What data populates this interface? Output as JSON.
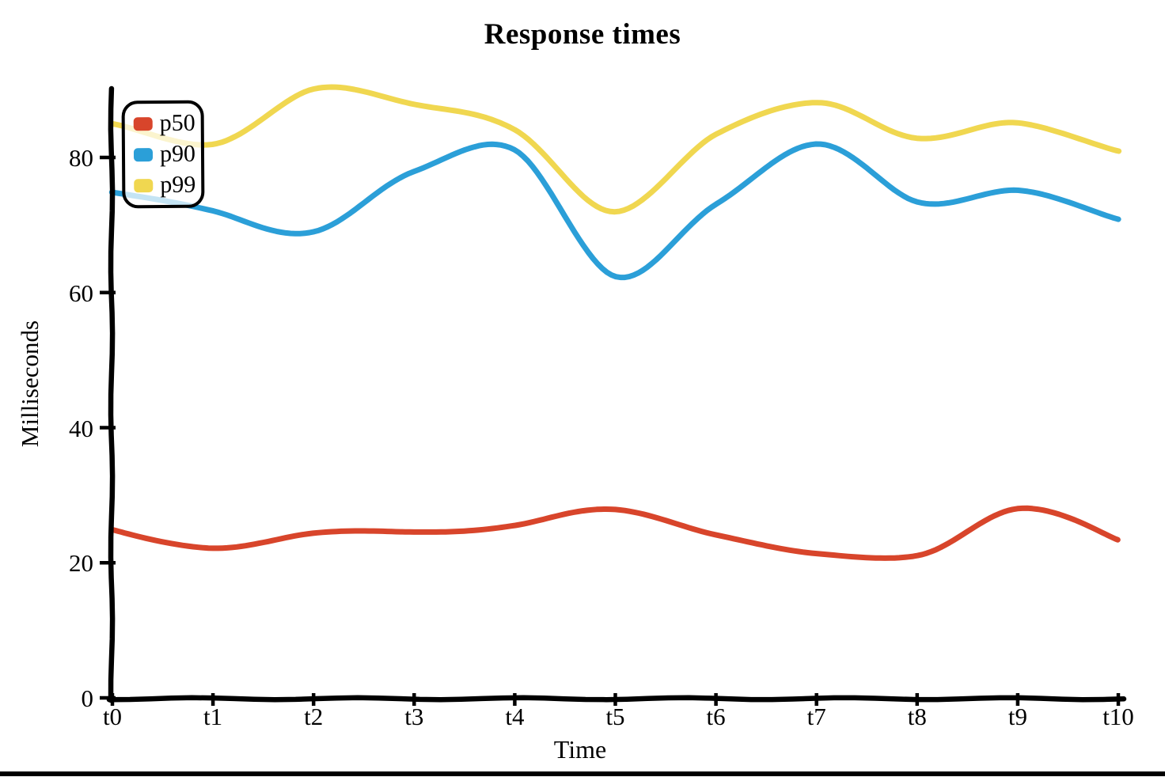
{
  "chart_data": {
    "type": "line",
    "title": "Response times",
    "xlabel": "Time",
    "ylabel": "Milliseconds",
    "categories": [
      "t0",
      "t1",
      "t2",
      "t3",
      "t4",
      "t5",
      "t6",
      "t7",
      "t8",
      "t9",
      "t10"
    ],
    "x": [
      0,
      1,
      2,
      3,
      4,
      5,
      6,
      7,
      8,
      9,
      10
    ],
    "yticks": [
      0,
      20,
      40,
      60,
      80
    ],
    "ylim": [
      0,
      90
    ],
    "grid": false,
    "legend_position": "upper-left",
    "style": "hand-drawn sketch lines, thick strokes, serif labels",
    "series": [
      {
        "name": "p50",
        "color": "#d8452b",
        "values": [
          25,
          22,
          24.5,
          24.5,
          25.5,
          28,
          24,
          21.5,
          21,
          28,
          23.5
        ]
      },
      {
        "name": "p90",
        "color": "#2b9fd8",
        "values": [
          75,
          72,
          69,
          78,
          81,
          62.5,
          73,
          82,
          73.5,
          75,
          71
        ]
      },
      {
        "name": "p99",
        "color": "#f0d750",
        "values": [
          85,
          82,
          90,
          88,
          84,
          72,
          83.5,
          88,
          83,
          85,
          81
        ]
      }
    ]
  },
  "colors": {
    "background": "#ffffff",
    "axis": "#000000",
    "text": "#000000",
    "p50": "#d8452b",
    "p90": "#2b9fd8",
    "p99": "#f0d750"
  }
}
